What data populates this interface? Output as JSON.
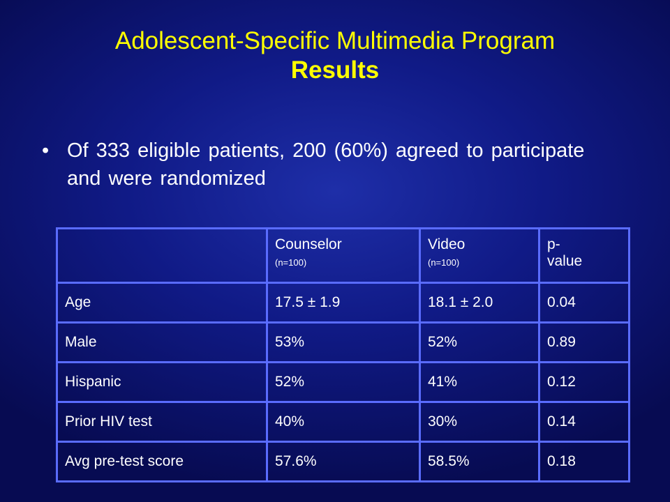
{
  "title": {
    "line1": "Adolescent-Specific Multimedia Program",
    "line2": "Results"
  },
  "bullet": {
    "symbol": "•",
    "text": "Of 333 eligible patients, 200 (60%) agreed to participate and were randomized"
  },
  "table": {
    "header": {
      "col0": "",
      "col1": {
        "label": "Counselor",
        "sub": "(n=100)"
      },
      "col2": {
        "label": "Video",
        "sub": "(n=100)"
      },
      "col3": "p-\nvalue"
    },
    "rows": [
      {
        "label": "Age",
        "counselor": "17.5 ± 1.9",
        "video": "18.1 ± 2.0",
        "p": "0.04"
      },
      {
        "label": "Male",
        "counselor": "53%",
        "video": "52%",
        "p": "0.89"
      },
      {
        "label": "Hispanic",
        "counselor": "52%",
        "video": "41%",
        "p": "0.12"
      },
      {
        "label": "Prior HIV test",
        "counselor": "40%",
        "video": "30%",
        "p": "0.14"
      },
      {
        "label": "Avg pre-test score",
        "counselor": "57.6%",
        "video": "58.5%",
        "p": "0.18"
      }
    ]
  }
}
